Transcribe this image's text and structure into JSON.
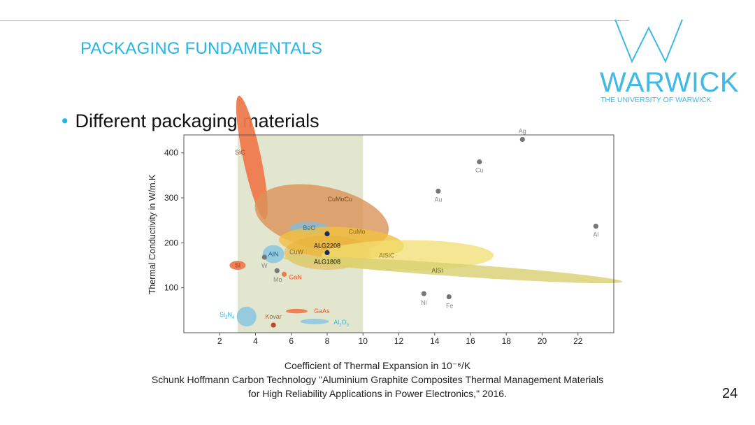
{
  "slide": {
    "title": "PACKAGING FUNDAMENTALS",
    "bullet": "Different packaging materials",
    "citation_line1": "Schunk Hoffmann Carbon Technology \"Aluminium Graphite Composites Thermal Management Materials",
    "citation_line2": "for High Reliability Applications in Power Electronics,\" 2016.",
    "page_number": "24"
  },
  "logo": {
    "word": "WARWICK",
    "subtitle": "THE UNIVERSITY OF WARWICK",
    "color": "#40b9e4"
  },
  "chart_data": {
    "type": "scatter",
    "xlabel": "Coefficient of Thermal Expansion in 10⁻⁶/K",
    "ylabel": "Thermal Conductivity in W/m.K",
    "xlim": [
      0,
      24
    ],
    "ylim": [
      0,
      440
    ],
    "xticks": [
      2,
      4,
      6,
      8,
      10,
      12,
      14,
      16,
      18,
      20,
      22
    ],
    "yticks": [
      100,
      200,
      300,
      400
    ],
    "grid": false,
    "highlight_band": {
      "x_from": 3,
      "x_to": 10,
      "color": "#e3e6cf"
    },
    "regions": [
      {
        "label": "SiC",
        "cx": 3.8,
        "cy": 390,
        "rx": 0.5,
        "ry": 140,
        "rot": 12,
        "color": "#ee7a4d",
        "label_color": "#9a3a18",
        "opacity": 0.95
      },
      {
        "label": "CuMoCu",
        "cx": 7.7,
        "cy": 255,
        "rx": 3.8,
        "ry": 70,
        "rot": -12,
        "color": "#d99258",
        "label_color": "#7a4a20",
        "opacity": 0.8
      },
      {
        "label": "BeO",
        "cx": 7.0,
        "cy": 233,
        "rx": 1.1,
        "ry": 14,
        "rot": 0,
        "color": "#8db8cf",
        "label_color": "#2f6d92",
        "opacity": 0.85
      },
      {
        "label": "CuMo",
        "cx": 8.8,
        "cy": 200,
        "rx": 3.5,
        "ry": 35,
        "rot": -3,
        "color": "#f0c040",
        "label_color": "#8a6a10",
        "opacity": 0.8
      },
      {
        "label": "CuW",
        "cx": 8.0,
        "cy": 178,
        "rx": 2.4,
        "ry": 38,
        "rot": 0,
        "color": "#e6b23a",
        "label_color": "#8a6a10",
        "opacity": 0.55
      },
      {
        "label": "AlSiC",
        "cx": 12.5,
        "cy": 172,
        "rx": 4.8,
        "ry": 34,
        "rot": 0,
        "color": "#f2de70",
        "label_color": "#8a7a20",
        "opacity": 0.75
      },
      {
        "label": "AlSi",
        "cx": 15.0,
        "cy": 140,
        "rx": 9.5,
        "ry": 14,
        "rot": -4,
        "color": "#d8d070",
        "label_color": "#6a6a20",
        "opacity": 0.8
      },
      {
        "label": "AlN",
        "cx": 5.0,
        "cy": 175,
        "rx": 0.6,
        "ry": 20,
        "rot": 0,
        "color": "#8cc7e0",
        "label_color": "#1f6690",
        "opacity": 0.9
      },
      {
        "label": "Si",
        "cx": 3.0,
        "cy": 150,
        "rx": 0.45,
        "ry": 10,
        "rot": 0,
        "color": "#ee7a4d",
        "label_color": "#9a3a18",
        "opacity": 0.95
      },
      {
        "label": "Si3N4",
        "cx": 3.5,
        "cy": 36,
        "rx": 0.55,
        "ry": 22,
        "rot": 0,
        "color": "#8cc7e0",
        "label_color": "#25b6e6",
        "opacity": 0.9
      },
      {
        "label": "GaAs",
        "cx": 6.3,
        "cy": 48,
        "rx": 0.6,
        "ry": 5,
        "rot": 0,
        "color": "#ee7a4d",
        "label_color": "#ee5522",
        "opacity": 0.95
      },
      {
        "label": "Al2O3",
        "cx": 7.3,
        "cy": 25,
        "rx": 0.8,
        "ry": 6,
        "rot": 0,
        "color": "#8cc7e0",
        "label_color": "#25b6e6",
        "opacity": 0.9
      }
    ],
    "points": [
      {
        "label": "Ag",
        "x": 18.9,
        "y": 430,
        "color": "#777777",
        "label_color": "#888888",
        "dx": 0,
        "dy": -12
      },
      {
        "label": "Cu",
        "x": 16.5,
        "y": 380,
        "color": "#777777",
        "label_color": "#888888",
        "dx": 0,
        "dy": 12
      },
      {
        "label": "Au",
        "x": 14.2,
        "y": 315,
        "color": "#777777",
        "label_color": "#888888",
        "dx": 0,
        "dy": 12
      },
      {
        "label": "Al",
        "x": 23.0,
        "y": 237,
        "color": "#777777",
        "label_color": "#888888",
        "dx": 0,
        "dy": 12
      },
      {
        "label": "Ni",
        "x": 13.4,
        "y": 87,
        "color": "#777777",
        "label_color": "#888888",
        "dx": 0,
        "dy": 13
      },
      {
        "label": "Fe",
        "x": 14.8,
        "y": 80,
        "color": "#777777",
        "label_color": "#888888",
        "dx": 1,
        "dy": 13
      },
      {
        "label": "W",
        "x": 4.5,
        "y": 168,
        "color": "#777777",
        "label_color": "#888888",
        "dx": 0,
        "dy": 12
      },
      {
        "label": "Mo",
        "x": 5.2,
        "y": 138,
        "color": "#777777",
        "label_color": "#888888",
        "dx": 1,
        "dy": 13
      },
      {
        "label": "GaN",
        "x": 5.6,
        "y": 130,
        "color": "#ee7a4d",
        "label_color": "#ee5522",
        "dx": 16,
        "dy": 4
      },
      {
        "label": "Kovar",
        "x": 5.0,
        "y": 17,
        "color": "#b84a2a",
        "label_color": "#aa6633",
        "dx": 0,
        "dy": -12
      },
      {
        "label": "ALG2208",
        "x": 8.0,
        "y": 220,
        "color": "#1a2a5c",
        "label_color": "#111111",
        "dx": 0,
        "dy": 17
      },
      {
        "label": "ALG1808",
        "x": 8.0,
        "y": 178,
        "color": "#1a2a5c",
        "label_color": "#111111",
        "dx": 0,
        "dy": 13
      }
    ]
  }
}
